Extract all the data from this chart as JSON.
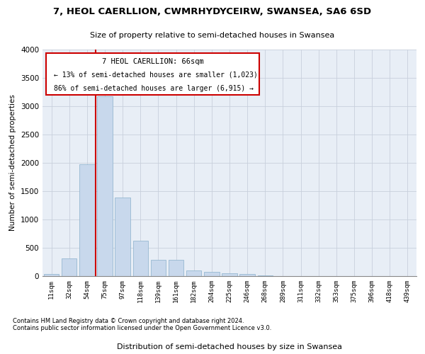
{
  "title": "7, HEOL CAERLLION, CWMRHYDYCEIRW, SWANSEA, SA6 6SD",
  "subtitle": "Size of property relative to semi-detached houses in Swansea",
  "xlabel": "Distribution of semi-detached houses by size in Swansea",
  "ylabel": "Number of semi-detached properties",
  "footnote1": "Contains HM Land Registry data © Crown copyright and database right 2024.",
  "footnote2": "Contains public sector information licensed under the Open Government Licence v3.0.",
  "annotation_title": "7 HEOL CAERLLION: 66sqm",
  "annotation_line1": "← 13% of semi-detached houses are smaller (1,023)",
  "annotation_line2": "86% of semi-detached houses are larger (6,915) →",
  "bar_color": "#c8d8ec",
  "bar_edge_color": "#8ab0cc",
  "vline_color": "#cc0000",
  "annotation_box_color": "#cc0000",
  "grid_color": "#c8d0dc",
  "background_color": "#e8eef6",
  "categories": [
    "11sqm",
    "32sqm",
    "54sqm",
    "75sqm",
    "97sqm",
    "118sqm",
    "139sqm",
    "161sqm",
    "182sqm",
    "204sqm",
    "225sqm",
    "246sqm",
    "268sqm",
    "289sqm",
    "311sqm",
    "332sqm",
    "353sqm",
    "375sqm",
    "396sqm",
    "418sqm",
    "439sqm"
  ],
  "values": [
    40,
    310,
    1980,
    3170,
    1390,
    630,
    285,
    285,
    105,
    75,
    55,
    35,
    12,
    6,
    3,
    2,
    1,
    1,
    1,
    1,
    1
  ],
  "ylim": [
    0,
    4000
  ],
  "yticks": [
    0,
    500,
    1000,
    1500,
    2000,
    2500,
    3000,
    3500,
    4000
  ],
  "vline_x": 2.5
}
